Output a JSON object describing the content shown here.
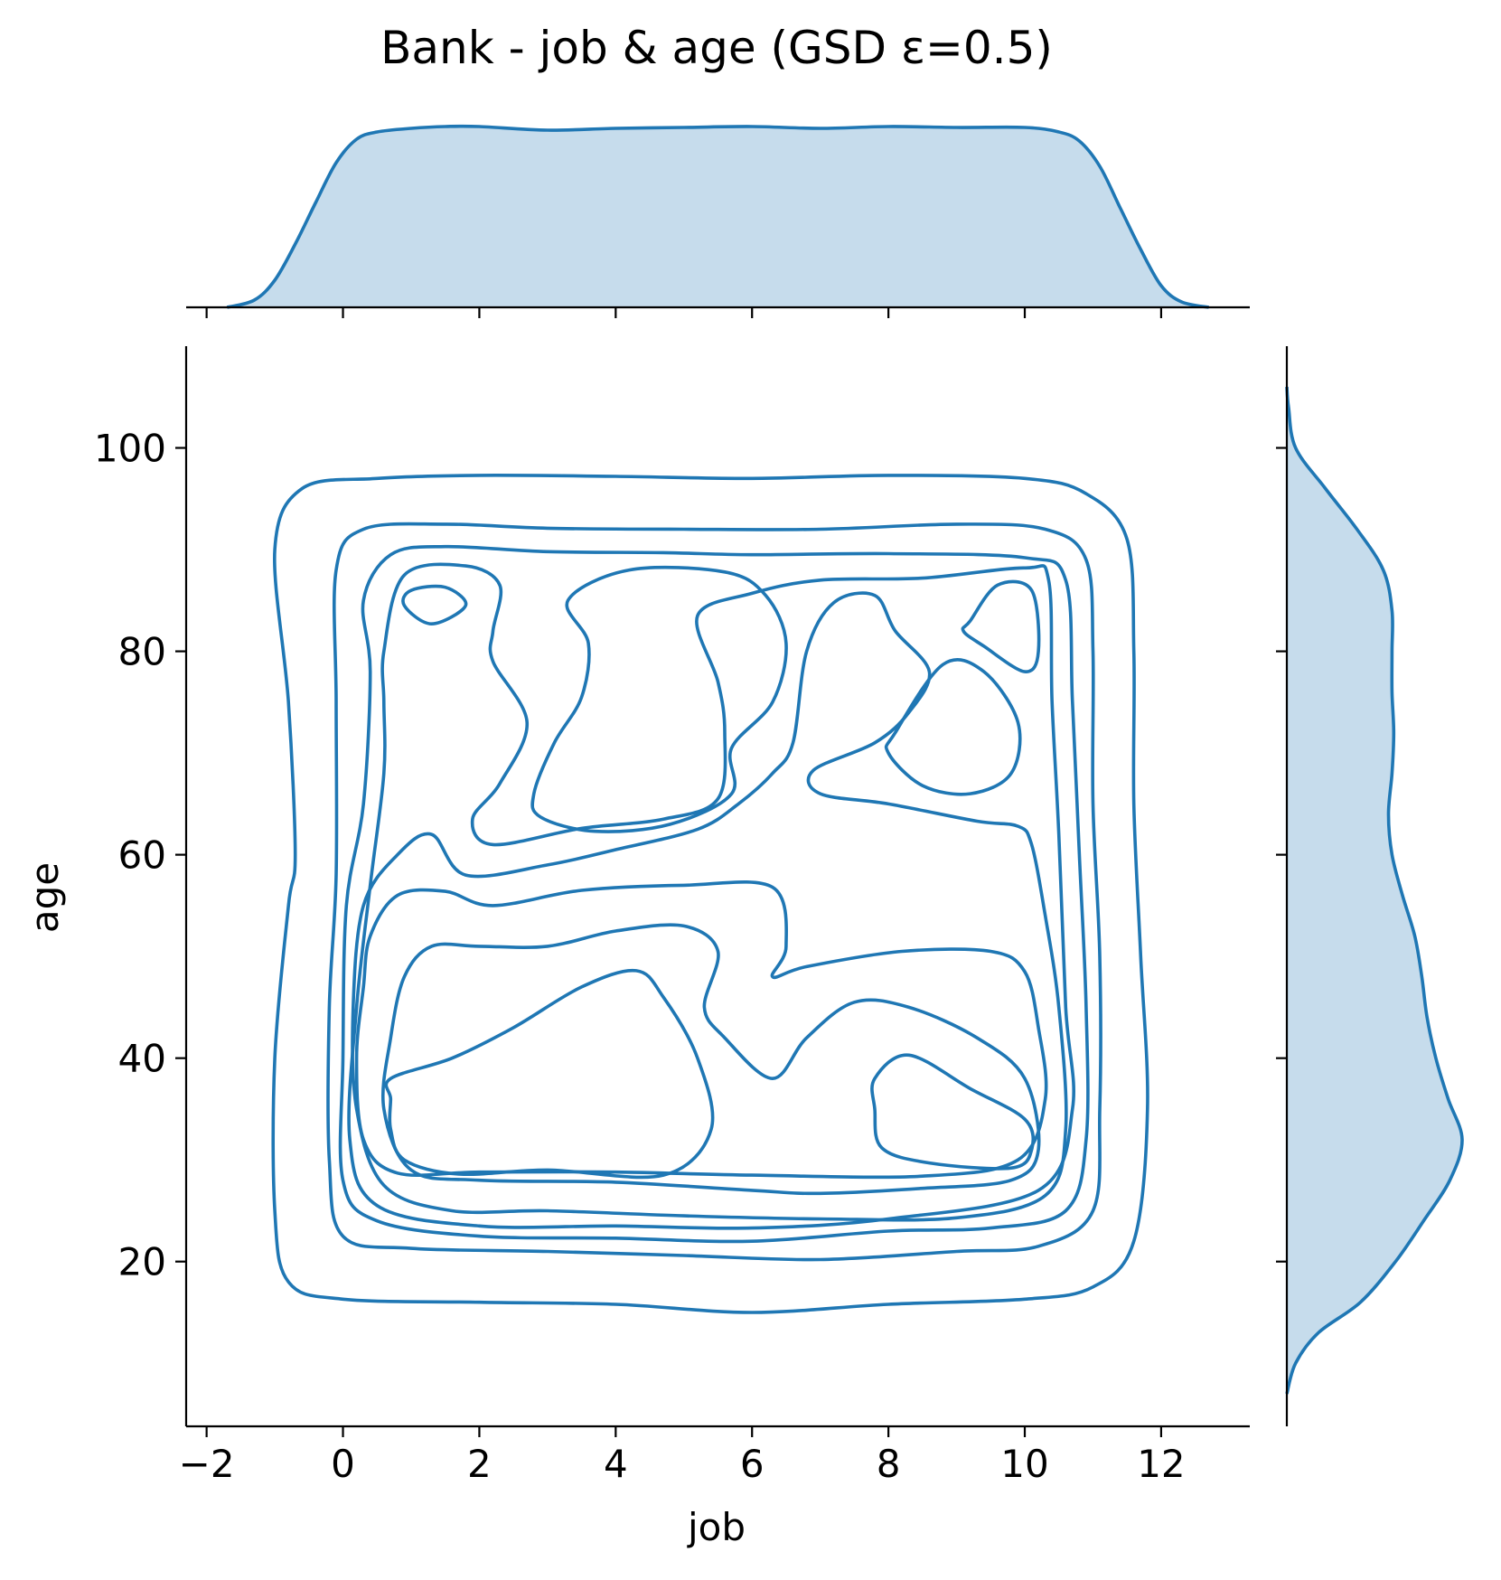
{
  "chart_data": {
    "type": "kde-jointplot",
    "title": "Bank - job & age (GSD ε=0.5)",
    "xlabel": "job",
    "ylabel": "age",
    "xlim": [
      -2.3,
      13.3
    ],
    "ylim": [
      3.8,
      110
    ],
    "x_ticks": [
      {
        "value": -2,
        "label": "−2"
      },
      {
        "value": 0,
        "label": "0"
      },
      {
        "value": 2,
        "label": "2"
      },
      {
        "value": 4,
        "label": "4"
      },
      {
        "value": 6,
        "label": "6"
      },
      {
        "value": 8,
        "label": "8"
      },
      {
        "value": 10,
        "label": "10"
      },
      {
        "value": 12,
        "label": "12"
      }
    ],
    "y_ticks": [
      {
        "value": 20,
        "label": "20"
      },
      {
        "value": 40,
        "label": "40"
      },
      {
        "value": 60,
        "label": "60"
      },
      {
        "value": 80,
        "label": "80"
      },
      {
        "value": 100,
        "label": "100"
      }
    ],
    "color": "#1f77b4",
    "fill_color": "#c6dcec",
    "marginal_x": {
      "x": [
        -1.7,
        -1.3,
        -1.0,
        -0.7,
        -0.4,
        -0.1,
        0.2,
        0.5,
        1.0,
        1.5,
        2.0,
        3.0,
        4.0,
        5.0,
        6.0,
        7.0,
        8.0,
        9.0,
        10.0,
        10.5,
        10.8,
        11.1,
        11.4,
        11.7,
        12.0,
        12.3,
        12.7
      ],
      "density": [
        0.0,
        0.04,
        0.15,
        0.35,
        0.58,
        0.8,
        0.93,
        0.97,
        0.99,
        1.0,
        1.0,
        0.98,
        0.99,
        0.995,
        1.0,
        0.99,
        1.0,
        0.995,
        0.995,
        0.97,
        0.92,
        0.78,
        0.55,
        0.32,
        0.12,
        0.03,
        0.0
      ]
    },
    "marginal_y": {
      "age": [
        7,
        10,
        13,
        16,
        20,
        24,
        28,
        32,
        36,
        40,
        44,
        48,
        52,
        56,
        60,
        64,
        68,
        72,
        76,
        80,
        84,
        88,
        92,
        96,
        100,
        104,
        106
      ],
      "density": [
        0.0,
        0.05,
        0.18,
        0.42,
        0.62,
        0.78,
        0.93,
        1.0,
        0.92,
        0.85,
        0.8,
        0.77,
        0.73,
        0.66,
        0.6,
        0.58,
        0.6,
        0.61,
        0.6,
        0.6,
        0.6,
        0.55,
        0.4,
        0.22,
        0.05,
        0.01,
        0.0
      ]
    },
    "contour_levels": [
      [
        [
          -1.0,
          90
        ],
        [
          -0.6,
          96
        ],
        [
          0.5,
          97
        ],
        [
          2,
          97.3
        ],
        [
          4,
          97.2
        ],
        [
          6,
          97
        ],
        [
          8,
          97.3
        ],
        [
          10,
          97
        ],
        [
          10.9,
          95.5
        ],
        [
          11.5,
          91
        ],
        [
          11.6,
          80
        ],
        [
          11.6,
          65
        ],
        [
          11.7,
          50
        ],
        [
          11.8,
          35
        ],
        [
          11.6,
          22
        ],
        [
          11,
          17.5
        ],
        [
          10,
          16.3
        ],
        [
          8,
          15.8
        ],
        [
          6,
          15
        ],
        [
          4,
          15.8
        ],
        [
          2,
          16
        ],
        [
          0,
          16.3
        ],
        [
          -0.8,
          18
        ],
        [
          -1.0,
          25
        ],
        [
          -1.0,
          40
        ],
        [
          -0.8,
          55
        ],
        [
          -0.7,
          60
        ],
        [
          -0.8,
          75
        ]
      ],
      [
        [
          -0.1,
          88
        ],
        [
          0.3,
          92
        ],
        [
          1.5,
          92.5
        ],
        [
          3,
          92.1
        ],
        [
          5,
          92
        ],
        [
          7,
          92
        ],
        [
          9,
          92.5
        ],
        [
          10.3,
          92
        ],
        [
          10.9,
          89
        ],
        [
          11,
          80
        ],
        [
          11,
          65
        ],
        [
          11.1,
          50
        ],
        [
          11.1,
          35
        ],
        [
          11,
          25
        ],
        [
          10.2,
          21.5
        ],
        [
          9,
          21
        ],
        [
          7,
          20.2
        ],
        [
          5,
          20.6
        ],
        [
          3,
          21
        ],
        [
          1,
          21.3
        ],
        [
          0,
          22.5
        ],
        [
          -0.2,
          30
        ],
        [
          -0.2,
          45
        ],
        [
          -0.1,
          58
        ],
        [
          -0.1,
          75
        ]
      ],
      [
        [
          0.3,
          85
        ],
        [
          0.7,
          89.5
        ],
        [
          1.5,
          90.3
        ],
        [
          3,
          89.8
        ],
        [
          4.7,
          89.7
        ],
        [
          6,
          89.5
        ],
        [
          8,
          89.6
        ],
        [
          10,
          89.2
        ],
        [
          10.6,
          87
        ],
        [
          10.7,
          75
        ],
        [
          10.8,
          60
        ],
        [
          10.9,
          45
        ],
        [
          10.9,
          32
        ],
        [
          10.6,
          25
        ],
        [
          9.5,
          23.3
        ],
        [
          8,
          23
        ],
        [
          6,
          22
        ],
        [
          4,
          22.3
        ],
        [
          2,
          22.5
        ],
        [
          0.5,
          24
        ],
        [
          0,
          28
        ],
        [
          0,
          40
        ],
        [
          0.05,
          55
        ],
        [
          0.3,
          65
        ],
        [
          0.4,
          78
        ]
      ],
      [
        [
          0.6,
          80
        ],
        [
          0.9,
          87.5
        ],
        [
          1.8,
          88.4
        ],
        [
          2.3,
          86.5
        ],
        [
          2.2,
          82
        ],
        [
          2.2,
          79
        ],
        [
          2.7,
          73
        ],
        [
          2.3,
          67
        ],
        [
          1.9,
          63.5
        ],
        [
          2.2,
          61
        ],
        [
          3.5,
          62.6
        ],
        [
          4.7,
          63.5
        ],
        [
          5.5,
          65.5
        ],
        [
          5.6,
          72
        ],
        [
          5.5,
          77
        ],
        [
          5.2,
          83.5
        ],
        [
          6,
          85.7
        ],
        [
          7,
          87
        ],
        [
          8.5,
          87.2
        ],
        [
          10,
          88.2
        ],
        [
          10.35,
          87
        ],
        [
          10.4,
          75
        ],
        [
          10.5,
          62
        ],
        [
          10.6,
          45
        ],
        [
          10.7,
          35
        ],
        [
          10.2,
          27
        ],
        [
          8,
          24.2
        ],
        [
          6,
          23.3
        ],
        [
          4,
          23.5
        ],
        [
          2,
          23.5
        ],
        [
          0.5,
          25.5
        ],
        [
          0.1,
          32
        ],
        [
          0.2,
          45
        ],
        [
          0.4,
          57
        ],
        [
          0.6,
          68
        ],
        [
          0.6,
          75
        ]
      ],
      [
        [
          1.8,
          58
        ],
        [
          1.3,
          62
        ],
        [
          0.8,
          60
        ],
        [
          0.3,
          55
        ],
        [
          0.15,
          45
        ],
        [
          0.2,
          35
        ],
        [
          0.6,
          27.5
        ],
        [
          1.6,
          25
        ],
        [
          3,
          25
        ],
        [
          5,
          24.5
        ],
        [
          7,
          24.2
        ],
        [
          9,
          24.3
        ],
        [
          10.3,
          26.5
        ],
        [
          10.6,
          33
        ],
        [
          10.5,
          45
        ],
        [
          10.3,
          54
        ],
        [
          10.1,
          61
        ],
        [
          9.9,
          62.8
        ],
        [
          9.3,
          63.3
        ],
        [
          8,
          65
        ],
        [
          7,
          66
        ],
        [
          6.9,
          68.3
        ],
        [
          7.8,
          71
        ],
        [
          8.3,
          74
        ],
        [
          8.6,
          78
        ],
        [
          8.1,
          82
        ],
        [
          7.8,
          85.5
        ],
        [
          7.2,
          84.8
        ],
        [
          6.8,
          80
        ],
        [
          6.6,
          71
        ],
        [
          6.3,
          68
        ],
        [
          5.8,
          65
        ],
        [
          5.2,
          62.5
        ],
        [
          4,
          60.5
        ],
        [
          3,
          59
        ]
      ],
      [
        [
          0.4,
          52
        ],
        [
          0.8,
          56
        ],
        [
          1.5,
          56.4
        ],
        [
          2.2,
          55
        ],
        [
          3.5,
          56.5
        ],
        [
          5,
          57
        ],
        [
          6.3,
          56.8
        ],
        [
          6.5,
          51
        ],
        [
          6.3,
          48
        ],
        [
          6.8,
          49
        ],
        [
          8.2,
          50.5
        ],
        [
          9.5,
          50.5
        ],
        [
          10,
          48.5
        ],
        [
          10.2,
          43
        ],
        [
          10.3,
          36
        ],
        [
          9.9,
          30
        ],
        [
          8.5,
          28.4
        ],
        [
          6,
          28.5
        ],
        [
          4,
          28.8
        ],
        [
          2,
          28.8
        ],
        [
          0.8,
          28.7
        ],
        [
          0.3,
          32
        ],
        [
          0.2,
          40
        ],
        [
          0.3,
          47
        ]
      ],
      [
        [
          0.9,
          48
        ],
        [
          1.3,
          51
        ],
        [
          2,
          51
        ],
        [
          3,
          51
        ],
        [
          4,
          52.5
        ],
        [
          5,
          53
        ],
        [
          5.5,
          50.5
        ],
        [
          5.3,
          45
        ],
        [
          5.6,
          42
        ],
        [
          6.3,
          38
        ],
        [
          6.8,
          42
        ],
        [
          7.5,
          45.5
        ],
        [
          8.3,
          45
        ],
        [
          9.3,
          42
        ],
        [
          10,
          38
        ],
        [
          10.2,
          31
        ],
        [
          9.8,
          28
        ],
        [
          8.5,
          27.2
        ],
        [
          7,
          26.7
        ],
        [
          6,
          27
        ],
        [
          4,
          27.8
        ],
        [
          2,
          28
        ],
        [
          1,
          29
        ],
        [
          0.6,
          35
        ],
        [
          0.7,
          42
        ]
      ],
      [
        [
          0.7,
          38
        ],
        [
          1.6,
          40
        ],
        [
          2.5,
          43
        ],
        [
          3.5,
          47
        ],
        [
          4.3,
          48.6
        ],
        [
          4.7,
          46
        ],
        [
          5.2,
          40
        ],
        [
          5.4,
          33
        ],
        [
          4.7,
          28.5
        ],
        [
          3,
          29
        ],
        [
          1.7,
          28.6
        ],
        [
          0.9,
          30
        ],
        [
          0.7,
          33
        ],
        [
          0.7,
          36
        ]
      ],
      [
        [
          7.8,
          38
        ],
        [
          8.3,
          40.3
        ],
        [
          9.2,
          37
        ],
        [
          10,
          34
        ],
        [
          10.1,
          31
        ],
        [
          9.8,
          29.2
        ],
        [
          8.6,
          29.7
        ],
        [
          7.9,
          31.2
        ],
        [
          7.8,
          35
        ]
      ],
      [
        [
          1.3,
          82.7
        ],
        [
          1.8,
          84.5
        ],
        [
          1.5,
          86.3
        ],
        [
          1,
          86
        ],
        [
          0.9,
          84.5
        ]
      ],
      [
        [
          9.2,
          83
        ],
        [
          9.6,
          86.5
        ],
        [
          10.1,
          86
        ],
        [
          10.2,
          80
        ],
        [
          10.0,
          78
        ],
        [
          9.4,
          80.5
        ],
        [
          9.1,
          82
        ]
      ],
      [
        [
          8.1,
          72
        ],
        [
          8.8,
          78.7
        ],
        [
          9.4,
          78
        ],
        [
          9.9,
          73
        ],
        [
          9.8,
          68
        ],
        [
          9.2,
          66
        ],
        [
          8.5,
          66.8
        ],
        [
          8.0,
          70
        ]
      ],
      [
        [
          2.8,
          66
        ],
        [
          3.1,
          71
        ],
        [
          3.5,
          75.5
        ],
        [
          3.6,
          80.8
        ],
        [
          3.3,
          85
        ],
        [
          4.2,
          88
        ],
        [
          5.6,
          87.8
        ],
        [
          6.2,
          85.5
        ],
        [
          6.5,
          80.8
        ],
        [
          6.3,
          75
        ],
        [
          5.7,
          70.5
        ],
        [
          5.7,
          66
        ],
        [
          4.8,
          63
        ],
        [
          3.7,
          62.3
        ],
        [
          2.9,
          63.7
        ]
      ]
    ]
  }
}
